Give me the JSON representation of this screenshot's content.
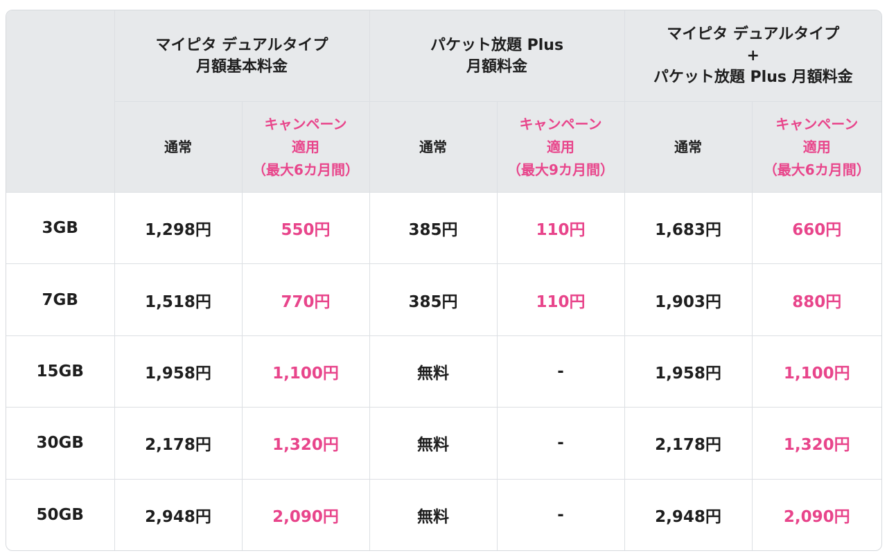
{
  "header": {
    "groups": [
      {
        "line1": "マイピタ デュアルタイプ",
        "line2": "月額基本料金",
        "line3": ""
      },
      {
        "line1": "パケット放題 Plus",
        "line2": "月額料金",
        "line3": ""
      },
      {
        "line1": "マイピタ デュアルタイプ",
        "line2": "+",
        "line3": "パケット放題 Plus 月額料金"
      }
    ],
    "normal": "通常",
    "campaign": [
      {
        "line1": "キャンペーン",
        "line2": "適用",
        "line3": "（最大6カ月間）"
      },
      {
        "line1": "キャンペーン",
        "line2": "適用",
        "line3": "（最大9カ月間）"
      },
      {
        "line1": "キャンペーン",
        "line2": "適用",
        "line3": "（最大6カ月間）"
      }
    ]
  },
  "rows": [
    {
      "plan": "3GB",
      "base": "1,298円",
      "base_cp": "550円",
      "packet": "385円",
      "packet_cp": "110円",
      "total": "1,683円",
      "total_cp": "660円"
    },
    {
      "plan": "7GB",
      "base": "1,518円",
      "base_cp": "770円",
      "packet": "385円",
      "packet_cp": "110円",
      "total": "1,903円",
      "total_cp": "880円"
    },
    {
      "plan": "15GB",
      "base": "1,958円",
      "base_cp": "1,100円",
      "packet": "無料",
      "packet_cp": "-",
      "total": "1,958円",
      "total_cp": "1,100円"
    },
    {
      "plan": "30GB",
      "base": "2,178円",
      "base_cp": "1,320円",
      "packet": "無料",
      "packet_cp": "-",
      "total": "2,178円",
      "total_cp": "1,320円"
    },
    {
      "plan": "50GB",
      "base": "2,948円",
      "base_cp": "2,090円",
      "packet": "無料",
      "packet_cp": "-",
      "total": "2,948円",
      "total_cp": "2,090円"
    }
  ],
  "colors": {
    "campaign": "#e8458b",
    "header_bg": "#e7e9eb",
    "border": "#dcdfe3"
  }
}
